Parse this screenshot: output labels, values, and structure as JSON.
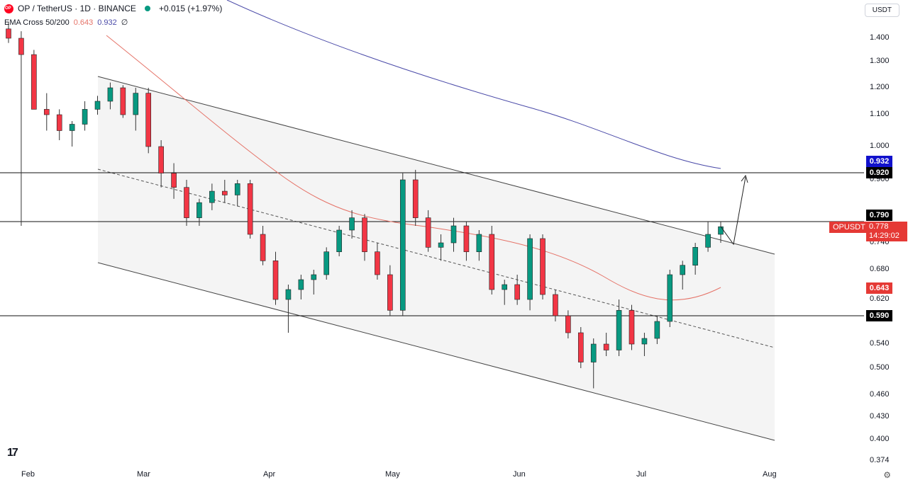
{
  "header": {
    "symbol": "OP / TetherUS · 1D · BINANCE",
    "change": "+0.015 (+1.97%)",
    "indicator_label": "EMA Cross 50/200",
    "ema50": "0.643",
    "ema200": "0.932",
    "indicator_extra": "∅"
  },
  "currency_button": "USDT",
  "price_axis": {
    "labels": [
      "1.400",
      "1.300",
      "1.200",
      "1.100",
      "1.000",
      "0.900",
      "0.740",
      "0.680",
      "0.620",
      "0.580",
      "0.540",
      "0.500",
      "0.460",
      "0.430",
      "0.400",
      "0.374"
    ],
    "tags": {
      "t0932": "0.932",
      "t0920": "0.920",
      "t0790": "0.790",
      "t0643": "0.643",
      "t0590": "0.590"
    },
    "current_symbol": "OPUSDT",
    "current_price": "0.778",
    "countdown": "14:29:02"
  },
  "x_axis": {
    "labels": [
      "Feb",
      "Mar",
      "Apr",
      "May",
      "Jun",
      "Jul",
      "Aug"
    ]
  },
  "colors": {
    "up": "#089981",
    "down": "#f23645",
    "ema50": "#e57368",
    "ema200": "#4a4aa8",
    "channel": "#f5f5f5"
  },
  "chart_data": {
    "type": "candlestick",
    "title": "OP / TetherUS · 1D · BINANCE",
    "levels": [
      0.92,
      0.79,
      0.59
    ],
    "ema50_last": 0.643,
    "ema200_last": 0.932,
    "candles_approx": [
      [
        1.44,
        1.47,
        1.38,
        1.4
      ],
      [
        1.4,
        1.43,
        0.78,
        1.33
      ],
      [
        1.33,
        1.35,
        1.12,
        1.12
      ],
      [
        1.12,
        1.18,
        1.05,
        1.1
      ],
      [
        1.1,
        1.12,
        1.02,
        1.05
      ],
      [
        1.05,
        1.08,
        1.0,
        1.07
      ],
      [
        1.07,
        1.15,
        1.05,
        1.12
      ],
      [
        1.12,
        1.17,
        1.1,
        1.15
      ],
      [
        1.15,
        1.22,
        1.12,
        1.2
      ],
      [
        1.2,
        1.21,
        1.09,
        1.1
      ],
      [
        1.1,
        1.2,
        1.05,
        1.18
      ],
      [
        1.18,
        1.2,
        0.98,
        1.0
      ],
      [
        1.0,
        1.02,
        0.88,
        0.92
      ],
      [
        0.92,
        0.95,
        0.85,
        0.88
      ],
      [
        0.88,
        0.9,
        0.78,
        0.8
      ],
      [
        0.8,
        0.85,
        0.78,
        0.84
      ],
      [
        0.84,
        0.89,
        0.82,
        0.87
      ],
      [
        0.87,
        0.9,
        0.84,
        0.86
      ],
      [
        0.86,
        0.9,
        0.83,
        0.89
      ],
      [
        0.89,
        0.9,
        0.75,
        0.76
      ],
      [
        0.76,
        0.78,
        0.69,
        0.7
      ],
      [
        0.7,
        0.72,
        0.61,
        0.62
      ],
      [
        0.62,
        0.65,
        0.56,
        0.64
      ],
      [
        0.64,
        0.67,
        0.62,
        0.66
      ],
      [
        0.66,
        0.68,
        0.63,
        0.67
      ],
      [
        0.67,
        0.73,
        0.66,
        0.72
      ],
      [
        0.72,
        0.78,
        0.71,
        0.77
      ],
      [
        0.77,
        0.82,
        0.75,
        0.8
      ],
      [
        0.8,
        0.81,
        0.7,
        0.72
      ],
      [
        0.72,
        0.74,
        0.66,
        0.67
      ],
      [
        0.67,
        0.69,
        0.59,
        0.6
      ],
      [
        0.6,
        0.92,
        0.59,
        0.9
      ],
      [
        0.9,
        0.93,
        0.78,
        0.8
      ],
      [
        0.8,
        0.82,
        0.72,
        0.73
      ],
      [
        0.73,
        0.76,
        0.7,
        0.74
      ],
      [
        0.74,
        0.8,
        0.72,
        0.78
      ],
      [
        0.78,
        0.79,
        0.7,
        0.72
      ],
      [
        0.72,
        0.77,
        0.7,
        0.76
      ],
      [
        0.76,
        0.78,
        0.63,
        0.64
      ],
      [
        0.64,
        0.66,
        0.61,
        0.65
      ],
      [
        0.65,
        0.67,
        0.61,
        0.62
      ],
      [
        0.62,
        0.76,
        0.6,
        0.75
      ],
      [
        0.75,
        0.76,
        0.62,
        0.63
      ],
      [
        0.63,
        0.64,
        0.58,
        0.59
      ],
      [
        0.59,
        0.6,
        0.55,
        0.56
      ],
      [
        0.56,
        0.57,
        0.5,
        0.51
      ],
      [
        0.51,
        0.55,
        0.47,
        0.54
      ],
      [
        0.54,
        0.56,
        0.52,
        0.53
      ],
      [
        0.53,
        0.62,
        0.52,
        0.6
      ],
      [
        0.6,
        0.61,
        0.53,
        0.54
      ],
      [
        0.54,
        0.56,
        0.52,
        0.55
      ],
      [
        0.55,
        0.59,
        0.54,
        0.58
      ],
      [
        0.58,
        0.68,
        0.57,
        0.67
      ],
      [
        0.67,
        0.7,
        0.64,
        0.69
      ],
      [
        0.69,
        0.74,
        0.67,
        0.73
      ],
      [
        0.73,
        0.79,
        0.72,
        0.76
      ],
      [
        0.76,
        0.79,
        0.74,
        0.778
      ]
    ]
  }
}
